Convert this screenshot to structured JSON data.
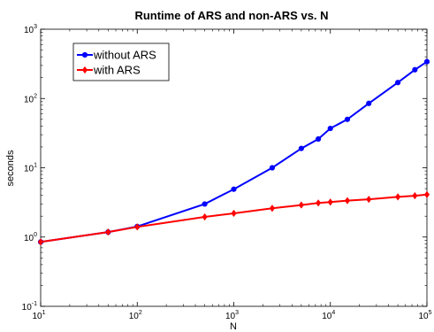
{
  "chart_data": {
    "type": "line",
    "title": "Runtime of ARS and non-ARS vs. N",
    "xlabel": "N",
    "ylabel": "seconds",
    "xscale": "log",
    "yscale": "log",
    "xlim": [
      10,
      100000
    ],
    "ylim": [
      0.1,
      1000
    ],
    "x_ticks": [
      {
        "base": "10",
        "exp": "1"
      },
      {
        "base": "10",
        "exp": "2"
      },
      {
        "base": "10",
        "exp": "3"
      },
      {
        "base": "10",
        "exp": "4"
      },
      {
        "base": "10",
        "exp": "5"
      }
    ],
    "y_ticks": [
      {
        "base": "10",
        "exp": "-1"
      },
      {
        "base": "10",
        "exp": "0"
      },
      {
        "base": "10",
        "exp": "1"
      },
      {
        "base": "10",
        "exp": "2"
      },
      {
        "base": "10",
        "exp": "3"
      }
    ],
    "grid": false,
    "legend_position": "top-left",
    "series": [
      {
        "name": "without ARS",
        "color": "#0000ff",
        "marker": "circle",
        "x": [
          10,
          50,
          100,
          500,
          1000,
          2500,
          5000,
          7500,
          10000,
          15000,
          25000,
          50000,
          75000,
          100000
        ],
        "y": [
          0.85,
          1.18,
          1.42,
          3.0,
          4.9,
          10.0,
          19.0,
          26.0,
          37.0,
          50.0,
          85.0,
          170.0,
          260.0,
          340.0
        ]
      },
      {
        "name": "with ARS",
        "color": "#ff0000",
        "marker": "diamond",
        "x": [
          10,
          50,
          100,
          500,
          1000,
          2500,
          5000,
          7500,
          10000,
          15000,
          25000,
          50000,
          75000,
          100000
        ],
        "y": [
          0.85,
          1.18,
          1.4,
          1.95,
          2.2,
          2.6,
          2.9,
          3.1,
          3.2,
          3.35,
          3.5,
          3.8,
          3.95,
          4.1
        ]
      }
    ]
  }
}
